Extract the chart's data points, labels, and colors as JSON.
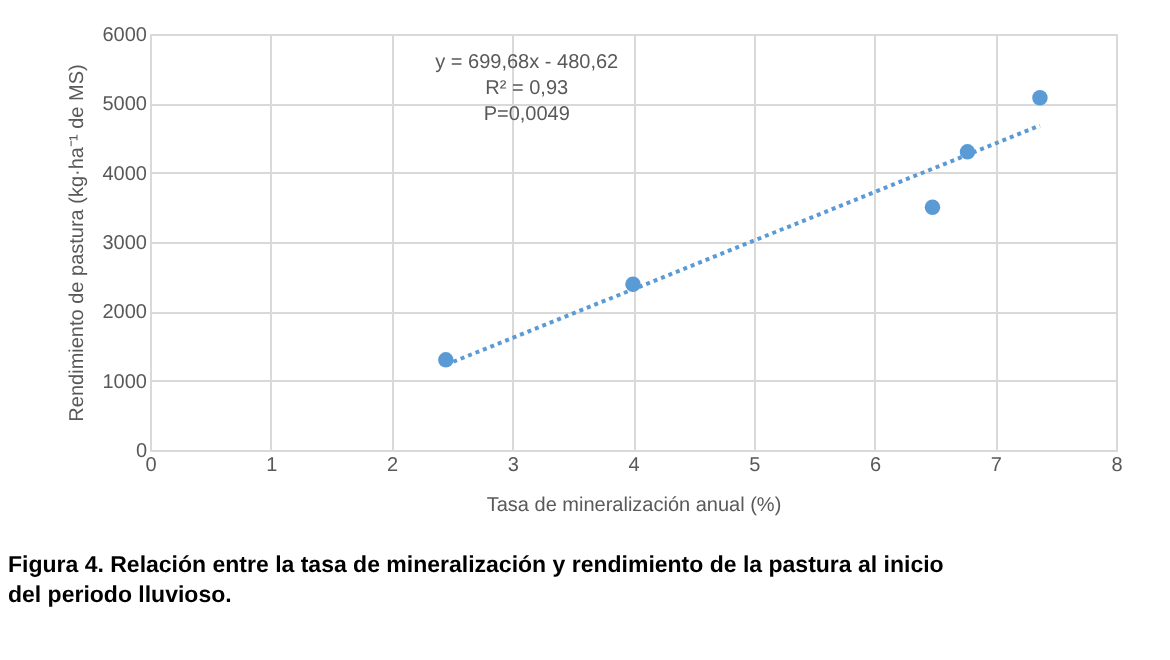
{
  "chart_data": {
    "type": "scatter",
    "title": "Figura 4.  Relación entre la tasa de mineralización y rendimiento de la pastura al inicio del periodo lluvioso.",
    "xlabel": "Tasa de mineralización anual (%)",
    "ylabel": "Rendimiento de pastura (kg·ha⁻¹ de MS)",
    "annotations": [
      "y = 699,68x - 480,62",
      "R² = 0,93",
      "P=0,0049"
    ],
    "series": [
      {
        "color": "#5b9bd5",
        "x": [
          2.45,
          4.0,
          6.48,
          6.77,
          7.37
        ],
        "values": [
          1300,
          2390,
          3500,
          4300,
          5080
        ],
        "marker": "circle"
      },
      {
        "type": "line",
        "color": "#5b9bd5",
        "x": [
          2.45,
          7.37
        ],
        "values": [
          1230,
          4680
        ],
        "line_style": "dotted"
      }
    ],
    "xlim": [
      0,
      8
    ],
    "xticks": [
      0,
      1,
      2,
      3,
      4,
      5,
      6,
      7,
      8
    ],
    "ylim": [
      0,
      6000
    ],
    "yticks": [
      0,
      1000,
      2000,
      3000,
      4000,
      5000,
      6000
    ],
    "grid": true
  }
}
